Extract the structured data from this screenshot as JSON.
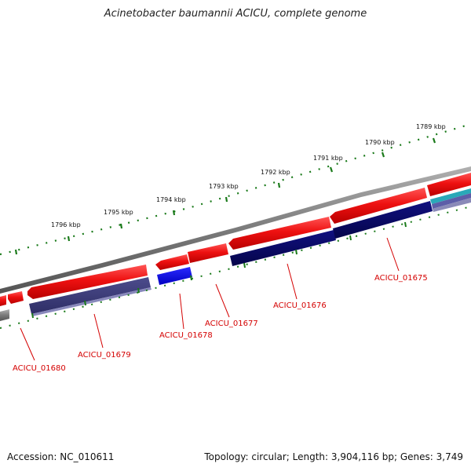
{
  "title": "Acinetobacter baumannii ACICU, complete genome",
  "footer": {
    "accession": "Accession: NC_010611",
    "topology": "Topology: circular; Length: 3,904,116 bp; Genes: 3,749"
  },
  "kbp_labels": [
    "1789 kbp",
    "1790 kbp",
    "1791 kbp",
    "1792 kbp",
    "1793 kbp",
    "1794 kbp",
    "1795 kbp",
    "1796 kbp"
  ],
  "genes": [
    {
      "id": "ACICU_01675",
      "label": "ACICU_01675"
    },
    {
      "id": "ACICU_01676",
      "label": "ACICU_01676"
    },
    {
      "id": "ACICU_01677",
      "label": "ACICU_01677"
    },
    {
      "id": "ACICU_01678",
      "label": "ACICU_01678"
    },
    {
      "id": "ACICU_01679",
      "label": "ACICU_01679"
    },
    {
      "id": "ACICU_01680",
      "label": "ACICU_01680"
    }
  ],
  "colors": {
    "forward_cds": "#ee1111",
    "reverse_dark": "#0a0a6a",
    "reverse_blue": "#0a0aee",
    "reverse_purple": "#3d3d7a",
    "backbone": "#808080",
    "ticks": "#1a7a1a",
    "label": "#d40000",
    "teal": "#2aa8b8"
  }
}
